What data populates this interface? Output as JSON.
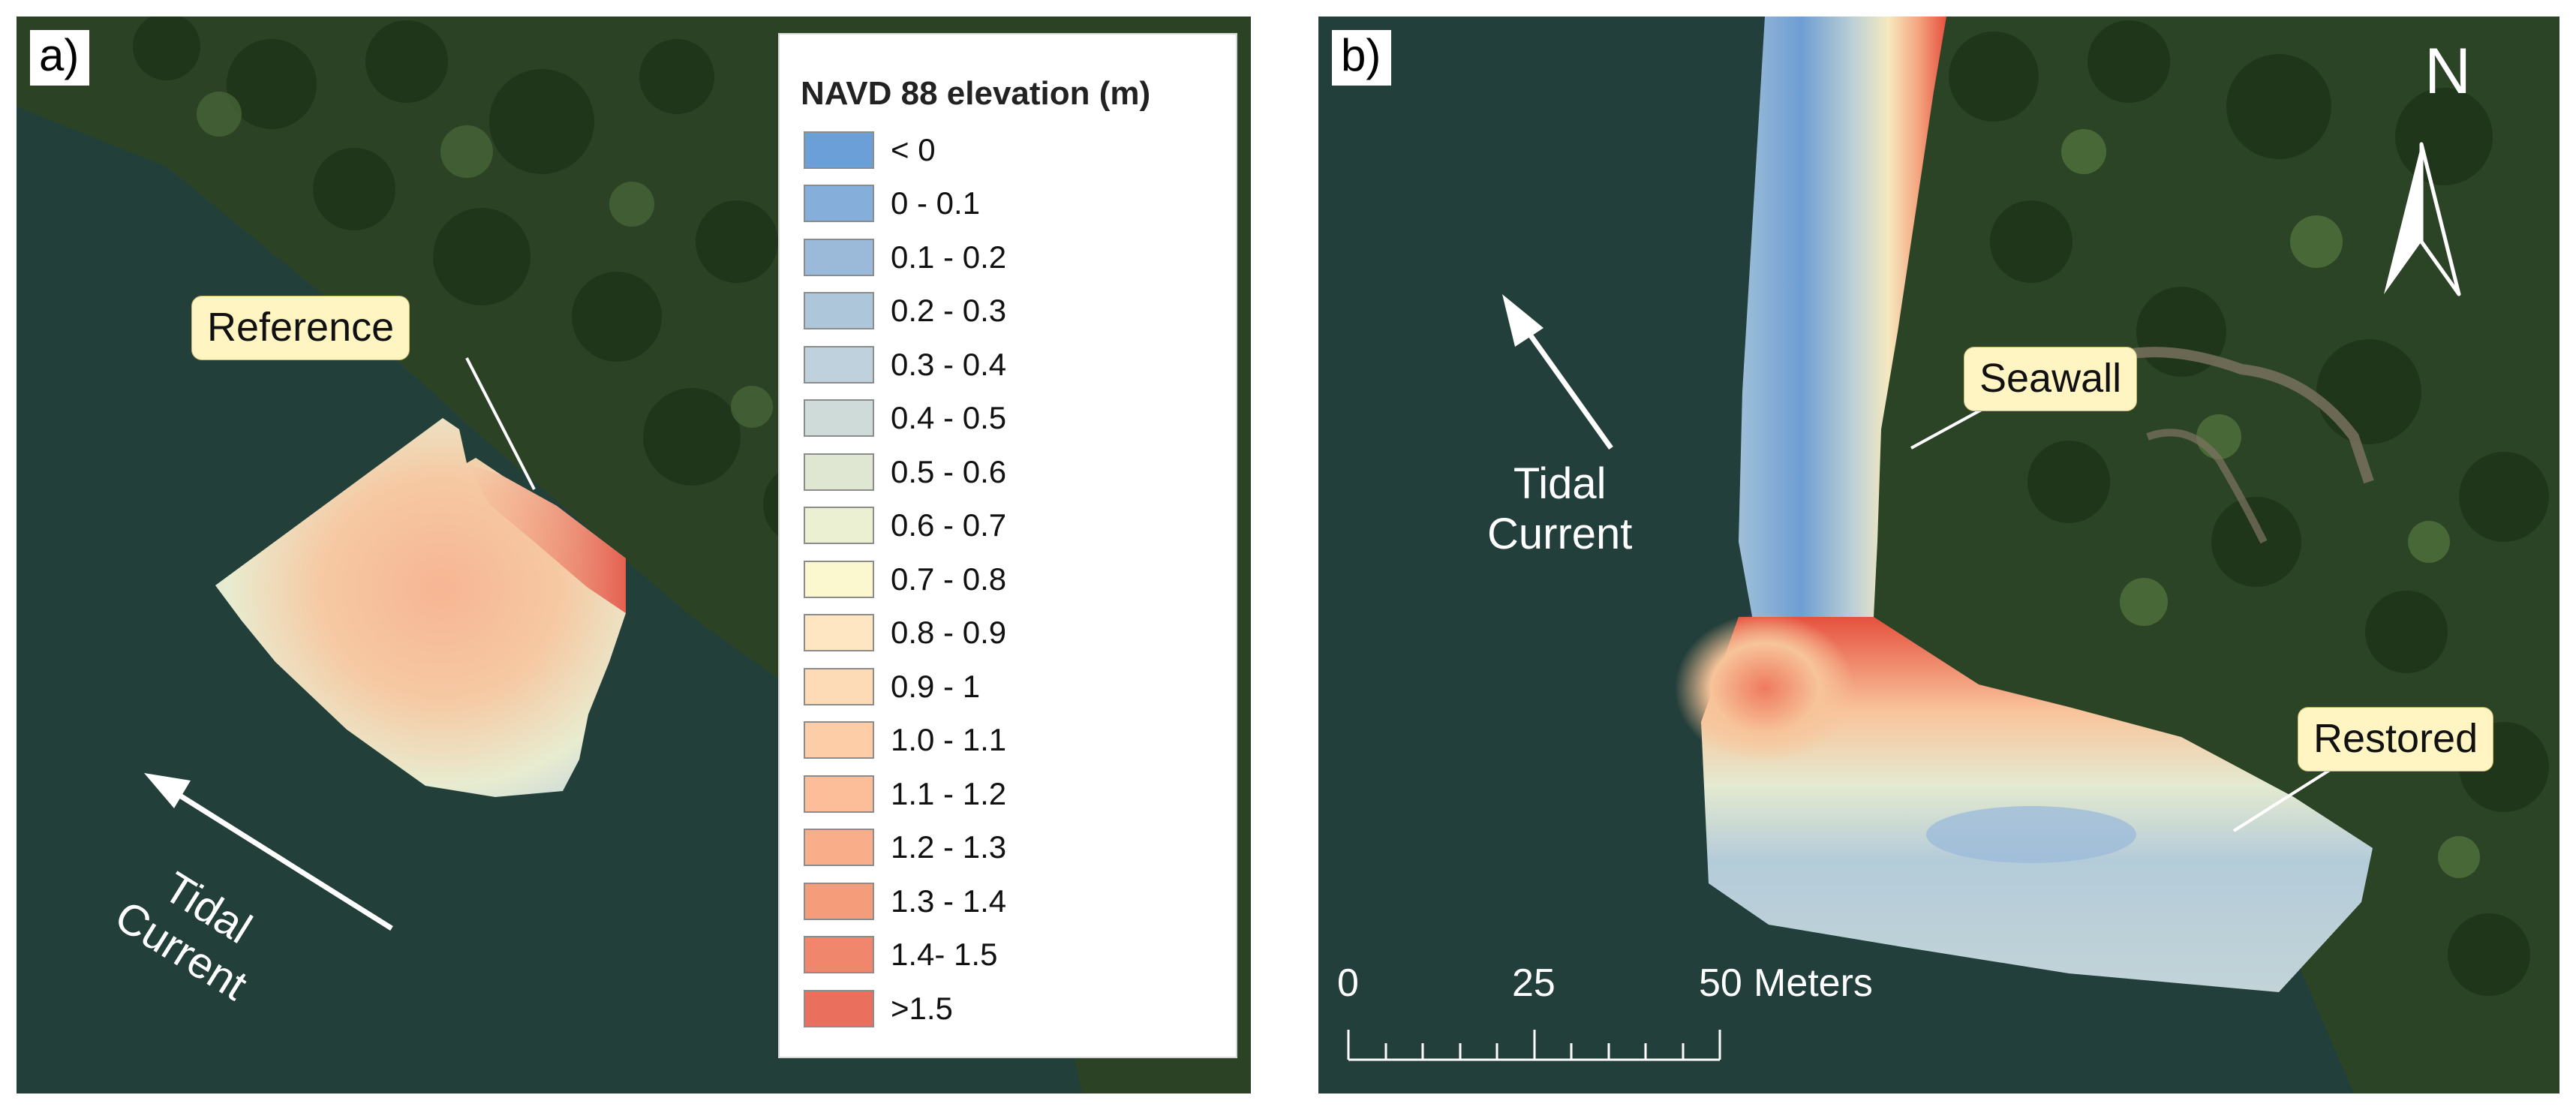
{
  "panels": {
    "a": {
      "label": "a)",
      "callout": "Reference",
      "current_label_lines": [
        "Tidal",
        "Current"
      ]
    },
    "b": {
      "label": "b)",
      "callouts": {
        "seawall": "Seawall",
        "restored": "Restored"
      },
      "current_label_lines": [
        "Tidal",
        "Current"
      ],
      "north_label": "N",
      "scale_bar": {
        "ticks": [
          "0",
          "25",
          "50"
        ],
        "units": "Meters"
      }
    }
  },
  "legend": {
    "title": "NAVD 88 elevation (m)",
    "items": [
      {
        "label": "< 0",
        "color": "#6a9fd8"
      },
      {
        "label": "0 - 0.1",
        "color": "#85aedb"
      },
      {
        "label": "0.1 - 0.2",
        "color": "#9bbad9"
      },
      {
        "label": "0.2 - 0.3",
        "color": "#aec6d9"
      },
      {
        "label": "0.3 - 0.4",
        "color": "#bfd1dc"
      },
      {
        "label": "0.4 - 0.5",
        "color": "#cfdbd8"
      },
      {
        "label": "0.5 - 0.6",
        "color": "#dfe6d2"
      },
      {
        "label": "0.6 - 0.7",
        "color": "#ebf0d2"
      },
      {
        "label": "0.7 - 0.8",
        "color": "#fbf8cf"
      },
      {
        "label": "0.8 - 0.9",
        "color": "#fde6c1"
      },
      {
        "label": "0.9 - 1",
        "color": "#fddbb6"
      },
      {
        "label": "1.0 - 1.1",
        "color": "#fccda6"
      },
      {
        "label": "1.1 - 1.2",
        "color": "#fbbe98"
      },
      {
        "label": "1.2 - 1.3",
        "color": "#f9ae89"
      },
      {
        "label": "1.3 - 1.4",
        "color": "#f59c7b"
      },
      {
        "label": "1.4- 1.5",
        "color": "#f0876c"
      },
      {
        "label": ">1.5",
        "color": "#ea6f5c"
      }
    ]
  }
}
